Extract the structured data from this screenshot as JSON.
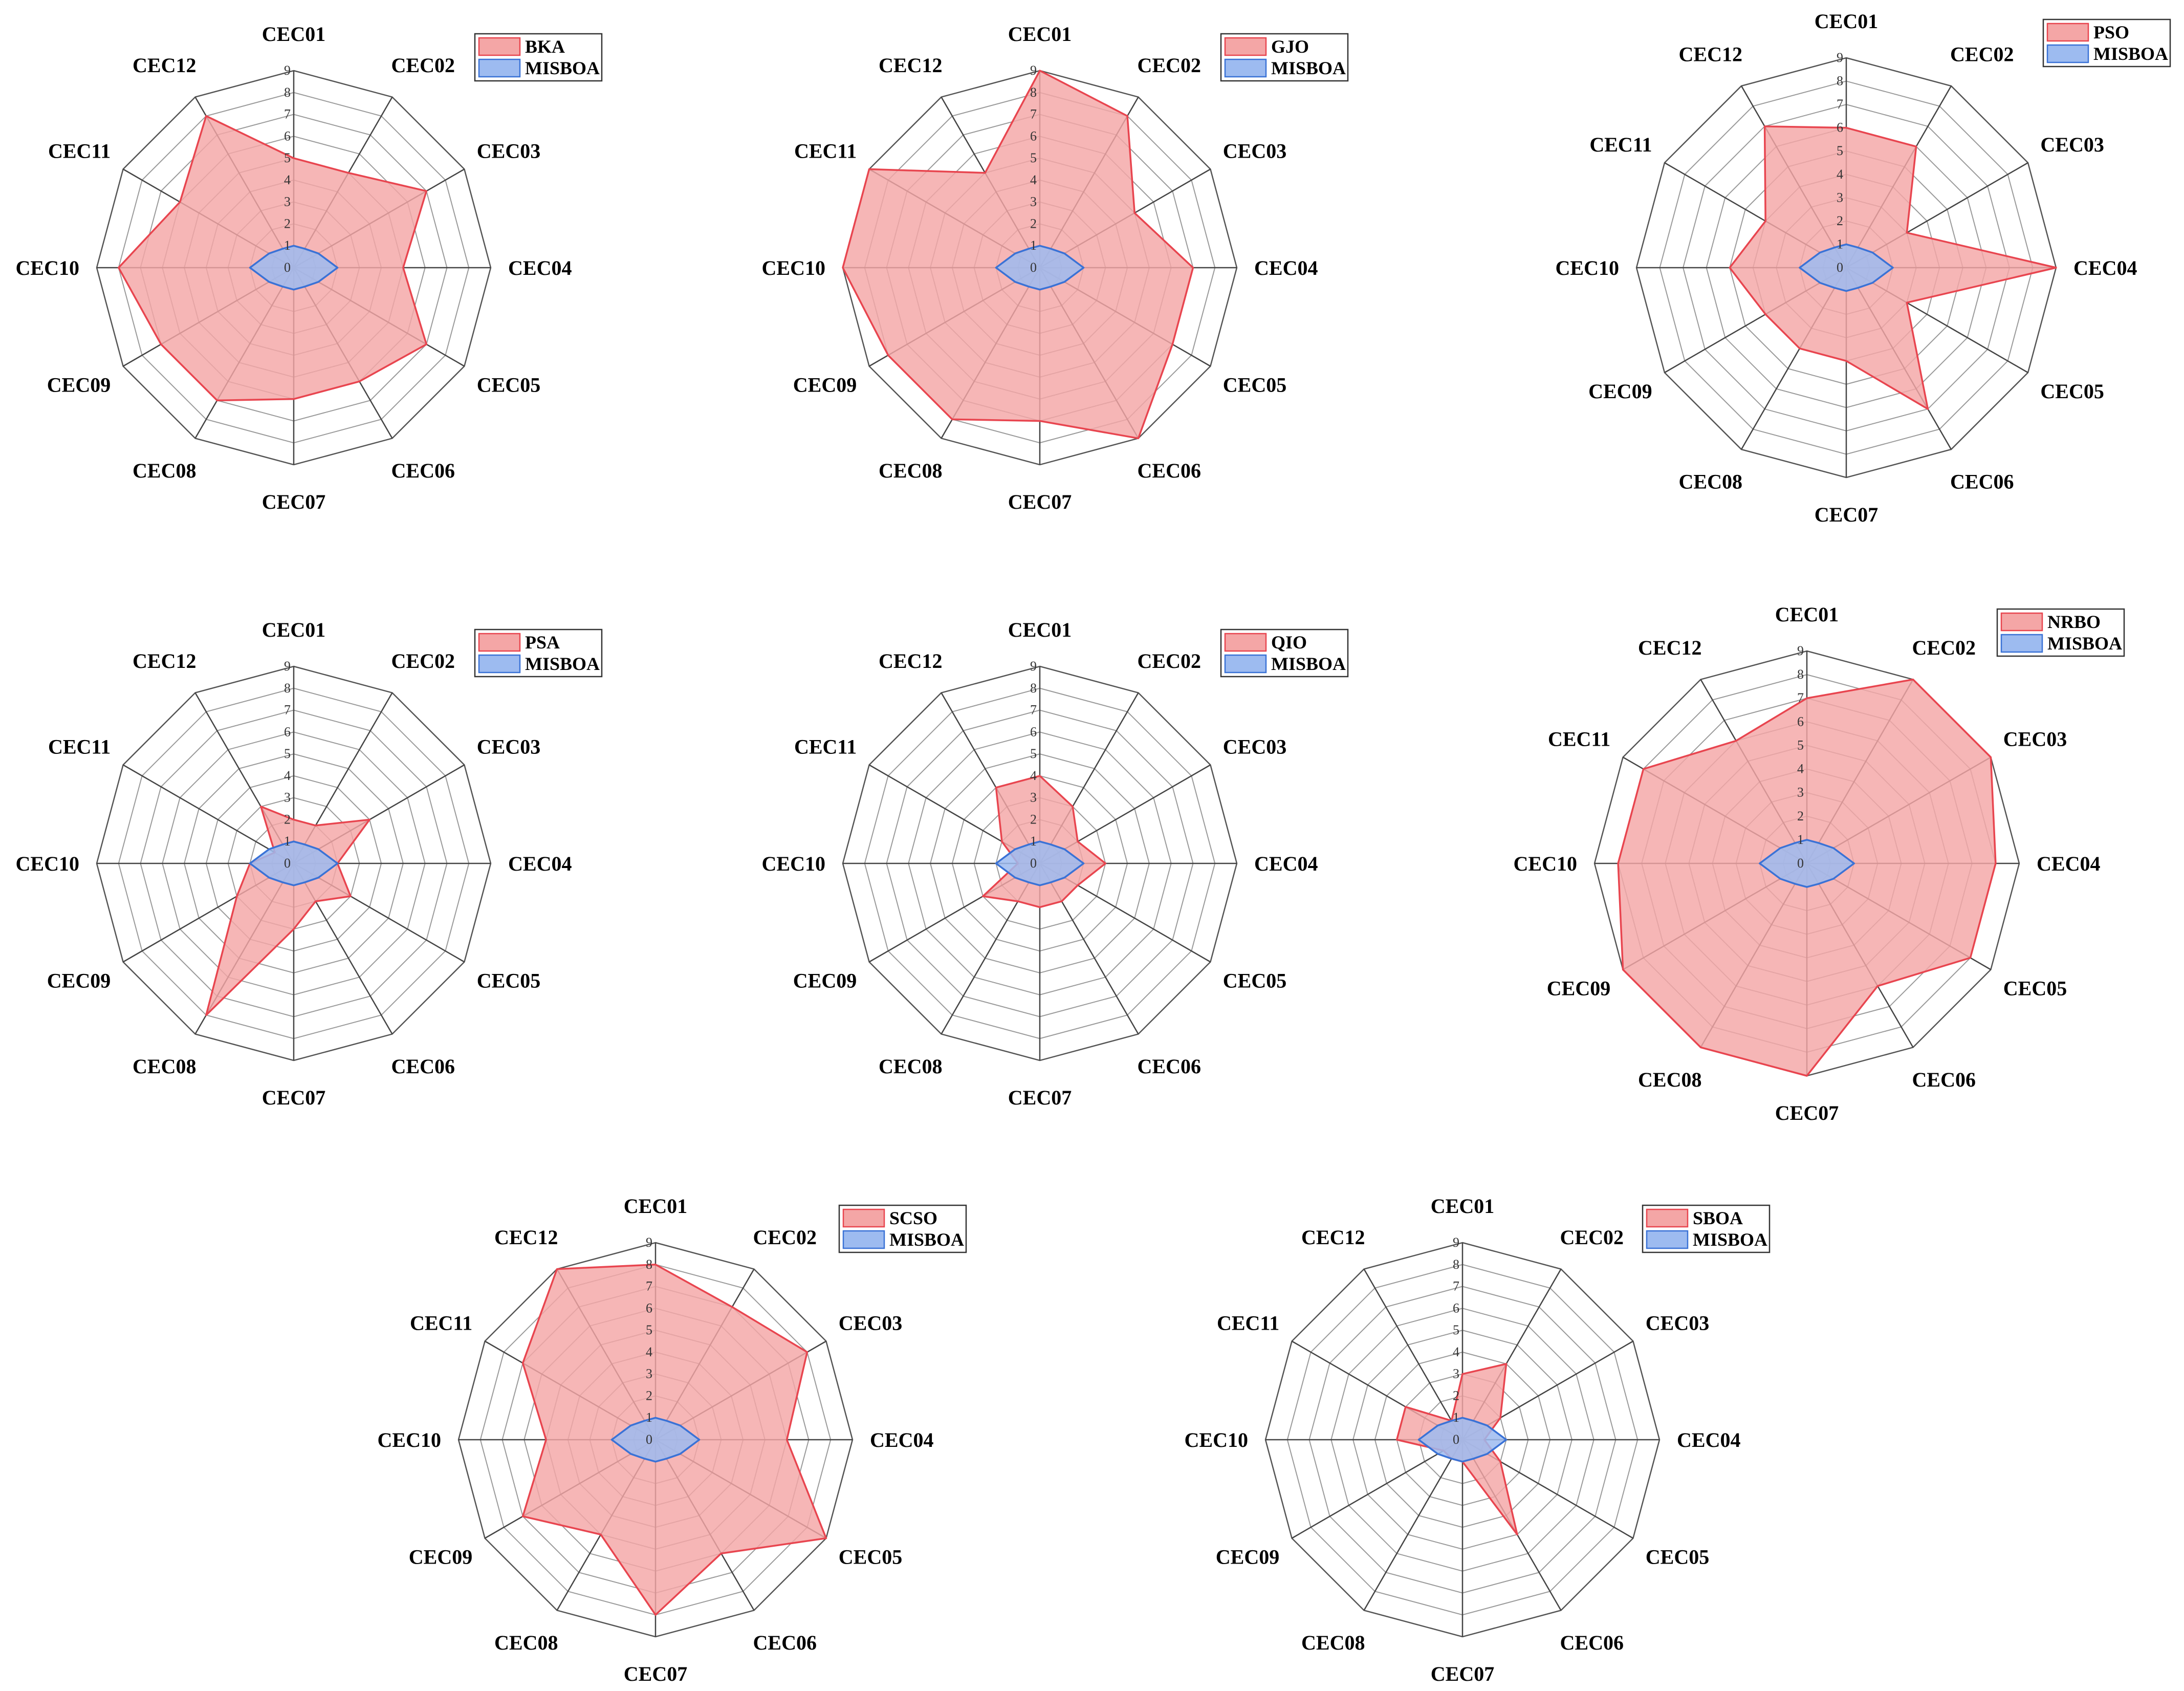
{
  "chart_data": [
    {
      "type": "radar",
      "title": "",
      "axes": [
        "CEC01",
        "CEC02",
        "CEC03",
        "CEC04",
        "CEC05",
        "CEC06",
        "CEC07",
        "CEC08",
        "CEC09",
        "CEC10",
        "CEC11",
        "CEC12"
      ],
      "tick_labels": [
        "0",
        "1",
        "2",
        "3",
        "4",
        "5",
        "6",
        "7",
        "8",
        "9"
      ],
      "rlim": [
        0,
        9
      ],
      "legend_position": "top-right",
      "series": [
        {
          "name": "BKA",
          "color": "#f4a6a6",
          "line": "#e8454f",
          "values": [
            5,
            5,
            7,
            5,
            7,
            6,
            6,
            7,
            7,
            8,
            6,
            8
          ]
        },
        {
          "name": "MISBOA",
          "color": "#9dbbf0",
          "line": "#3a72d6",
          "values": [
            1,
            1,
            1.3,
            2,
            1.3,
            1,
            1,
            1,
            1.3,
            2,
            1.3,
            1
          ]
        }
      ]
    },
    {
      "type": "radar",
      "title": "",
      "axes": [
        "CEC01",
        "CEC02",
        "CEC03",
        "CEC04",
        "CEC05",
        "CEC06",
        "CEC07",
        "CEC08",
        "CEC09",
        "CEC10",
        "CEC11",
        "CEC12"
      ],
      "tick_labels": [
        "0",
        "1",
        "2",
        "3",
        "4",
        "5",
        "6",
        "7",
        "8",
        "9"
      ],
      "rlim": [
        0,
        9
      ],
      "legend_position": "top-right",
      "series": [
        {
          "name": "GJO",
          "color": "#f4a6a6",
          "line": "#e8454f",
          "values": [
            9,
            8,
            5,
            7,
            7,
            9,
            7,
            8,
            8,
            9,
            9,
            5
          ]
        },
        {
          "name": "MISBOA",
          "color": "#9dbbf0",
          "line": "#3a72d6",
          "values": [
            1,
            1,
            1.3,
            2,
            1.3,
            1,
            1,
            1,
            1.3,
            2,
            1.3,
            1
          ]
        }
      ]
    },
    {
      "type": "radar",
      "title": "",
      "axes": [
        "CEC01",
        "CEC02",
        "CEC03",
        "CEC04",
        "CEC05",
        "CEC06",
        "CEC07",
        "CEC08",
        "CEC09",
        "CEC10",
        "CEC11",
        "CEC12"
      ],
      "tick_labels": [
        "0",
        "1",
        "2",
        "3",
        "4",
        "5",
        "6",
        "7",
        "8",
        "9"
      ],
      "rlim": [
        0,
        9
      ],
      "legend_position": "top-right",
      "series": [
        {
          "name": "PSO",
          "color": "#f4a6a6",
          "line": "#e8454f",
          "values": [
            6,
            6,
            3,
            9,
            3,
            7,
            4,
            4,
            4,
            5,
            4,
            7
          ]
        },
        {
          "name": "MISBOA",
          "color": "#9dbbf0",
          "line": "#3a72d6",
          "values": [
            1,
            1,
            1.3,
            2,
            1.3,
            1,
            1,
            1,
            1.3,
            2,
            1.3,
            1
          ]
        }
      ]
    },
    {
      "type": "radar",
      "title": "",
      "axes": [
        "CEC01",
        "CEC02",
        "CEC03",
        "CEC04",
        "CEC05",
        "CEC06",
        "CEC07",
        "CEC08",
        "CEC09",
        "CEC10",
        "CEC11",
        "CEC12"
      ],
      "tick_labels": [
        "0",
        "1",
        "2",
        "3",
        "4",
        "5",
        "6",
        "7",
        "8",
        "9"
      ],
      "rlim": [
        0,
        9
      ],
      "legend_position": "top-right",
      "series": [
        {
          "name": "PSA",
          "color": "#f4a6a6",
          "line": "#e8454f",
          "values": [
            2,
            2,
            4,
            2,
            3,
            2,
            3,
            8,
            3,
            2,
            1,
            3
          ]
        },
        {
          "name": "MISBOA",
          "color": "#9dbbf0",
          "line": "#3a72d6",
          "values": [
            1,
            1,
            1.3,
            2,
            1.3,
            1,
            1,
            1,
            1.3,
            2,
            1.3,
            1
          ]
        }
      ]
    },
    {
      "type": "radar",
      "title": "",
      "axes": [
        "CEC01",
        "CEC02",
        "CEC03",
        "CEC04",
        "CEC05",
        "CEC06",
        "CEC07",
        "CEC08",
        "CEC09",
        "CEC10",
        "CEC11",
        "CEC12"
      ],
      "tick_labels": [
        "0",
        "1",
        "2",
        "3",
        "4",
        "5",
        "6",
        "7",
        "8",
        "9"
      ],
      "rlim": [
        0,
        9
      ],
      "legend_position": "top-right",
      "series": [
        {
          "name": "QIO",
          "color": "#f4a6a6",
          "line": "#e8454f",
          "values": [
            4,
            3,
            2,
            3,
            2,
            2,
            2,
            2,
            3,
            1,
            2,
            4
          ]
        },
        {
          "name": "MISBOA",
          "color": "#9dbbf0",
          "line": "#3a72d6",
          "values": [
            1,
            1,
            1.3,
            2,
            1.3,
            1,
            1,
            1,
            1.3,
            2,
            1.3,
            1
          ]
        }
      ]
    },
    {
      "type": "radar",
      "title": "",
      "axes": [
        "CEC01",
        "CEC02",
        "CEC03",
        "CEC04",
        "CEC05",
        "CEC06",
        "CEC07",
        "CEC08",
        "CEC09",
        "CEC10",
        "CEC11",
        "CEC12"
      ],
      "tick_labels": [
        "0",
        "1",
        "2",
        "3",
        "4",
        "5",
        "6",
        "7",
        "8",
        "9"
      ],
      "rlim": [
        0,
        9
      ],
      "legend_position": "top-right",
      "series": [
        {
          "name": "NRBO",
          "color": "#f4a6a6",
          "line": "#e8454f",
          "values": [
            7,
            9,
            9,
            8,
            8,
            6,
            9,
            9,
            9,
            8,
            8,
            6
          ]
        },
        {
          "name": "MISBOA",
          "color": "#9dbbf0",
          "line": "#3a72d6",
          "values": [
            1,
            1,
            1.3,
            2,
            1.3,
            1,
            1,
            1,
            1.3,
            2,
            1.3,
            1
          ]
        }
      ]
    },
    {
      "type": "radar",
      "title": "",
      "axes": [
        "CEC01",
        "CEC02",
        "CEC03",
        "CEC04",
        "CEC05",
        "CEC06",
        "CEC07",
        "CEC08",
        "CEC09",
        "CEC10",
        "CEC11",
        "CEC12"
      ],
      "tick_labels": [
        "0",
        "1",
        "2",
        "3",
        "4",
        "5",
        "6",
        "7",
        "8",
        "9"
      ],
      "rlim": [
        0,
        9
      ],
      "legend_position": "top-right",
      "series": [
        {
          "name": "SCSO",
          "color": "#f4a6a6",
          "line": "#e8454f",
          "values": [
            8,
            7,
            8,
            6,
            9,
            6,
            8,
            5,
            7,
            5,
            7,
            9
          ]
        },
        {
          "name": "MISBOA",
          "color": "#9dbbf0",
          "line": "#3a72d6",
          "values": [
            1,
            1,
            1.3,
            2,
            1.3,
            1,
            1,
            1,
            1.3,
            2,
            1.3,
            1
          ]
        }
      ]
    },
    {
      "type": "radar",
      "title": "",
      "axes": [
        "CEC01",
        "CEC02",
        "CEC03",
        "CEC04",
        "CEC05",
        "CEC06",
        "CEC07",
        "CEC08",
        "CEC09",
        "CEC10",
        "CEC11",
        "CEC12"
      ],
      "tick_labels": [
        "0",
        "1",
        "2",
        "3",
        "4",
        "5",
        "6",
        "7",
        "8",
        "9"
      ],
      "rlim": [
        0,
        9
      ],
      "legend_position": "top-right",
      "series": [
        {
          "name": "SBOA",
          "color": "#f4a6a6",
          "line": "#e8454f",
          "values": [
            3,
            4,
            2,
            1,
            2,
            5,
            1,
            1,
            1,
            3,
            3,
            1
          ]
        },
        {
          "name": "MISBOA",
          "color": "#9dbbf0",
          "line": "#3a72d6",
          "values": [
            1,
            1,
            1.3,
            2,
            1.3,
            1,
            1,
            1,
            1.3,
            2,
            1.3,
            1
          ]
        }
      ]
    }
  ]
}
